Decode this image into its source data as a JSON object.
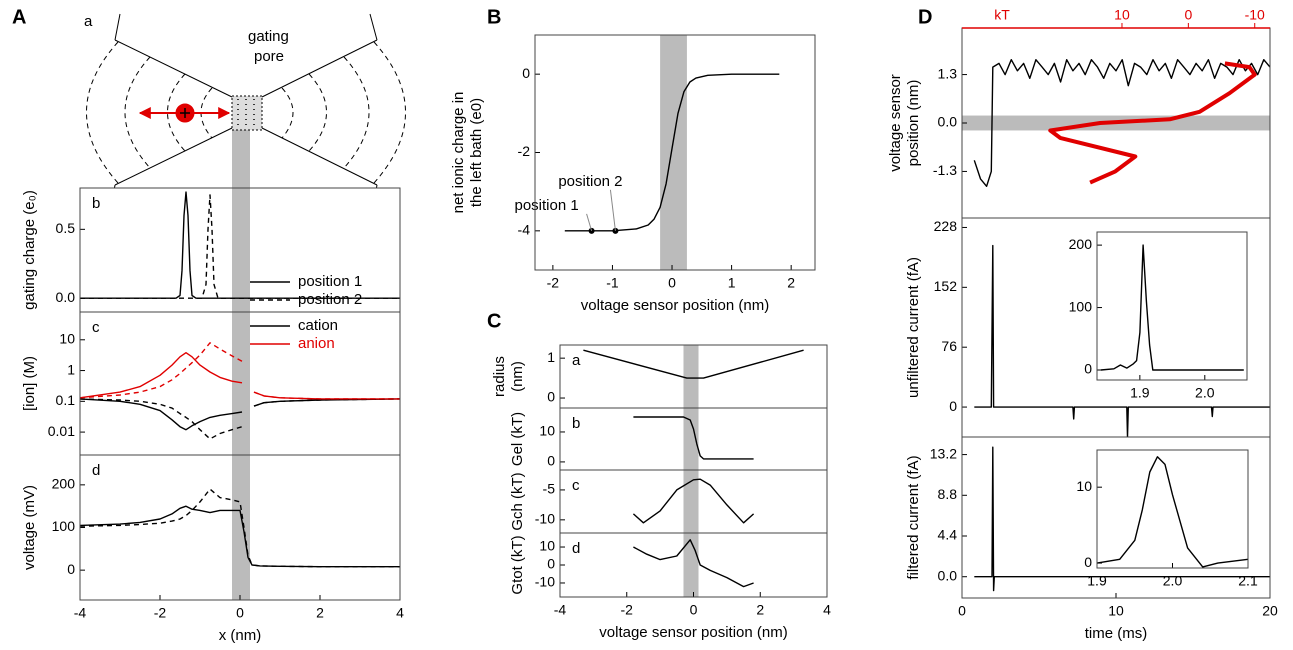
{
  "panels": [
    "A",
    "B",
    "C",
    "D"
  ],
  "schematic": {
    "label": "a",
    "text": [
      "gating",
      "pore"
    ]
  },
  "chart_data": [
    {
      "type": "line",
      "panel_label": "b",
      "ylabel": [
        "gating charge (e₀)"
      ],
      "xlim": [
        -4,
        4
      ],
      "ylim": [
        -0.1,
        0.8
      ],
      "yticks": [
        {
          "value": 0,
          "label": "0.0"
        },
        0.5
      ],
      "band": [
        -0.2,
        0.25
      ],
      "legend": "lower right",
      "x": [
        -4,
        -1.6,
        -1.5,
        -1.45,
        -1.4,
        -1.35,
        -1.3,
        -1.25,
        -1.2,
        -1.1,
        -0.95,
        -0.85,
        -0.8,
        -0.75,
        -0.7,
        -0.65,
        -0.55,
        4
      ],
      "series": [
        {
          "name": "position 1",
          "color": "#000000",
          "values": [
            0,
            0,
            0.02,
            0.2,
            0.6,
            0.77,
            0.6,
            0.2,
            0.02,
            0,
            0,
            0,
            0,
            0,
            0,
            0,
            0,
            0
          ]
        },
        {
          "name": "position 2",
          "color": "#000000",
          "dash": true,
          "values": [
            0,
            0,
            0,
            0,
            0,
            0,
            0,
            0,
            0,
            0,
            0,
            0.1,
            0.5,
            0.75,
            0.5,
            0.1,
            0,
            0
          ]
        }
      ]
    },
    {
      "type": "line",
      "panel_label": "c",
      "ylabel": [
        "[ion] (M)"
      ],
      "xlim": [
        -4,
        4
      ],
      "ylim": [
        0.0018,
        80
      ],
      "log_y": true,
      "yticks": [
        0.01,
        0.1,
        1,
        10
      ],
      "band": [
        -0.2,
        0.25
      ],
      "legend": "upper right",
      "x": [
        -4,
        -3,
        -2.5,
        -2,
        -1.7,
        -1.5,
        -1.35,
        -1.2,
        -1,
        -0.75,
        -0.5,
        -0.2,
        0.05,
        0.2,
        0.35,
        0.6,
        1,
        2,
        4
      ],
      "series": [
        {
          "name": "cation",
          "color": "#000000",
          "values": [
            0.12,
            0.1,
            0.08,
            0.05,
            0.025,
            0.015,
            0.012,
            0.016,
            0.022,
            0.03,
            0.035,
            0.04,
            0.045,
            null,
            0.07,
            0.09,
            0.1,
            0.11,
            0.12
          ]
        },
        {
          "name": "anion",
          "color": "#e00000",
          "values": [
            0.13,
            0.2,
            0.3,
            0.7,
            1.5,
            2.8,
            3.8,
            2.8,
            1.5,
            0.9,
            0.6,
            0.45,
            0.4,
            null,
            0.2,
            0.15,
            0.13,
            0.12,
            0.12
          ]
        },
        {
          "color": "#000000",
          "dash": true,
          "values": [
            0.12,
            0.11,
            0.1,
            0.08,
            0.06,
            0.04,
            0.03,
            0.022,
            0.012,
            0.006,
            0.009,
            0.012,
            0.015,
            null,
            0.07,
            0.09,
            0.1,
            0.11,
            0.12
          ]
        },
        {
          "color": "#e00000",
          "dash": true,
          "values": [
            0.13,
            0.16,
            0.2,
            0.3,
            0.5,
            0.8,
            1.2,
            1.8,
            3.2,
            8,
            5,
            3,
            2,
            null,
            0.2,
            0.15,
            0.13,
            0.12,
            0.12
          ]
        }
      ]
    },
    {
      "type": "line",
      "panel_label": "d",
      "ylabel": [
        "voltage (mV)"
      ],
      "xlabel": "x (nm)",
      "xlim": [
        -4,
        4
      ],
      "ylim": [
        -70,
        270
      ],
      "xticks": [
        -4,
        -2,
        0,
        2,
        4
      ],
      "yticks": [
        0,
        100,
        200
      ],
      "band": [
        -0.2,
        0.25
      ],
      "x": [
        -4,
        -3,
        -2.5,
        -2,
        -1.7,
        -1.5,
        -1.35,
        -1.2,
        -1,
        -0.75,
        -0.5,
        -0.2,
        0,
        0.1,
        0.2,
        0.3,
        0.5,
        1,
        2,
        4
      ],
      "series": [
        {
          "color": "#000000",
          "values": [
            105,
            108,
            112,
            120,
            132,
            145,
            150,
            143,
            140,
            135,
            140,
            140,
            140,
            90,
            30,
            12,
            10,
            9,
            8,
            8
          ]
        },
        {
          "color": "#000000",
          "dash": true,
          "values": [
            103,
            105,
            107,
            110,
            115,
            120,
            128,
            140,
            160,
            190,
            170,
            165,
            160,
            100,
            35,
            12,
            10,
            9,
            8,
            8
          ]
        }
      ]
    },
    {
      "type": "line",
      "ylabel": [
        "net ionic charge in",
        "the left bath (e0)"
      ],
      "xlabel": "voltage sensor position (nm)",
      "xlim": [
        -2.3,
        2.4
      ],
      "ylim": [
        -5,
        1
      ],
      "xticks": [
        -2,
        -1,
        0,
        1,
        2
      ],
      "yticks": [
        -4,
        -2,
        0
      ],
      "band": [
        -0.2,
        0.25
      ],
      "x": [
        -1.8,
        -1,
        -0.6,
        -0.4,
        -0.3,
        -0.2,
        -0.1,
        0,
        0.1,
        0.2,
        0.3,
        0.4,
        0.6,
        1,
        1.8
      ],
      "series": [
        {
          "color": "#000000",
          "values": [
            -4,
            -4,
            -3.95,
            -3.85,
            -3.7,
            -3.4,
            -2.8,
            -1.9,
            -1,
            -0.45,
            -0.2,
            -0.1,
            -0.03,
            0,
            0
          ]
        }
      ],
      "points": [
        {
          "x": -1.35,
          "y": -4,
          "label": "position 1"
        },
        {
          "x": -0.95,
          "y": -4,
          "label": "position 2"
        }
      ]
    },
    {
      "type": "line",
      "panel_label": "a",
      "ylabel": [
        "radius",
        "(nm)"
      ],
      "xlim": [
        -4,
        4
      ],
      "ylim": [
        -0.25,
        1.33
      ],
      "yticks": [
        0,
        1
      ],
      "band": [
        -0.3,
        0.15
      ],
      "x": [
        -3.3,
        -0.2,
        0.3,
        3.3
      ],
      "series": [
        {
          "color": "#000000",
          "values": [
            1.2,
            0.5,
            0.5,
            1.2
          ]
        }
      ]
    },
    {
      "type": "line",
      "panel_label": "b",
      "ylabel": [
        "Gel (kT)"
      ],
      "xlim": [
        -4,
        4
      ],
      "ylim": [
        -2.7,
        18
      ],
      "yticks": [
        0,
        10
      ],
      "band": [
        -0.3,
        0.15
      ],
      "x": [
        -1.8,
        -0.3,
        -0.1,
        0,
        0.1,
        0.2,
        0.3,
        0.5,
        1,
        1.8
      ],
      "series": [
        {
          "color": "#000000",
          "values": [
            15,
            15,
            14,
            11,
            6,
            2,
            1,
            1,
            1,
            1
          ]
        }
      ]
    },
    {
      "type": "line",
      "panel_label": "c",
      "ylabel": [
        "Gch (kT)"
      ],
      "xlim": [
        -4,
        4
      ],
      "ylim": [
        -12.2,
        -1.67
      ],
      "yticks": [
        -10,
        -5
      ],
      "band": [
        -0.3,
        0.15
      ],
      "x": [
        -1.8,
        -1.5,
        -1,
        -0.5,
        0,
        0.2,
        0.5,
        1,
        1.5,
        1.8
      ],
      "series": [
        {
          "color": "#000000",
          "values": [
            -9,
            -10.5,
            -8.5,
            -5,
            -3.3,
            -3.2,
            -4.2,
            -7.5,
            -10.5,
            -9
          ]
        }
      ]
    },
    {
      "type": "line",
      "panel_label": "d",
      "ylabel": [
        "Gtot (kT)"
      ],
      "xlabel": "voltage sensor position (nm)",
      "xlim": [
        -4,
        4
      ],
      "ylim": [
        -17.8,
        17.8
      ],
      "xticks": [
        -4,
        -2,
        0,
        2,
        4
      ],
      "yticks": [
        -10,
        0,
        10
      ],
      "band": [
        -0.3,
        0.15
      ],
      "x": [
        -1.8,
        -1.4,
        -1,
        -0.5,
        -0.1,
        0.05,
        0.2,
        0.5,
        1,
        1.5,
        1.8
      ],
      "series": [
        {
          "color": "#000000",
          "values": [
            10,
            6,
            3,
            5,
            14,
            8,
            0,
            -3,
            -7,
            -12,
            -10
          ]
        }
      ]
    },
    {
      "type": "line",
      "ylabel": [
        "voltage sensor",
        "position (nm)"
      ],
      "xlim": [
        0,
        20
      ],
      "ylim": [
        -2.55,
        2.55
      ],
      "yticks": [
        -1.3,
        {
          "value": 0,
          "label": "0.0"
        },
        1.3
      ],
      "band_y": [
        -0.2,
        0.2
      ],
      "x2lim": [
        34.1,
        -12.3
      ],
      "x2ticks": [
        10,
        0,
        -10
      ],
      "x2label": "kT",
      "x2color": "#e00000",
      "x": [
        0.8,
        1.2,
        1.6,
        1.9,
        2.0,
        2.4,
        2.8,
        3.2,
        3.6,
        4,
        4.4,
        4.8,
        5.2,
        5.6,
        6,
        6.4,
        6.8,
        7.2,
        7.6,
        8,
        8.4,
        8.8,
        9.2,
        9.6,
        10,
        10.4,
        10.8,
        11.2,
        11.6,
        12,
        12.4,
        12.8,
        13.2,
        13.6,
        14,
        14.4,
        14.8,
        15.2,
        15.6,
        16,
        16.4,
        16.8,
        17.2,
        17.6,
        18,
        18.4,
        18.8,
        19.2,
        19.6,
        20
      ],
      "series": [
        {
          "color": "#000000",
          "values": [
            -1.0,
            -1.5,
            -1.7,
            -1.3,
            1.5,
            1.6,
            1.3,
            1.7,
            1.4,
            1.6,
            1.2,
            1.7,
            1.5,
            1.3,
            1.6,
            1.1,
            1.7,
            1.4,
            1.6,
            1.3,
            1.7,
            1.5,
            1.2,
            1.6,
            1.4,
            1.7,
            1.0,
            1.6,
            1.5,
            1.3,
            1.7,
            1.4,
            1.6,
            1.2,
            1.7,
            1.5,
            1.3,
            1.6,
            1.4,
            1.7,
            1.2,
            1.6,
            1.5,
            1.3,
            1.7,
            1.4,
            1.6,
            1.3,
            1.7,
            1.5
          ]
        },
        {
          "color": "#e00000",
          "axis": "x2",
          "x": [
            14.8,
            11,
            8,
            19.3,
            20.8,
            13.3,
            2.8,
            -1.7,
            -6.2,
            -10,
            -9.2,
            -5.5
          ],
          "values": [
            -1.6,
            -1.3,
            -0.9,
            -0.4,
            -0.2,
            0,
            0.1,
            0.3,
            0.8,
            1.3,
            1.5,
            1.6
          ]
        }
      ]
    },
    {
      "type": "line",
      "ylabel": [
        "unfiltered current (fA)"
      ],
      "xlim": [
        0,
        20
      ],
      "ylim": [
        -38,
        240
      ],
      "yticks": [
        0,
        76,
        152,
        228
      ],
      "x": [
        0.8,
        1.9,
        2.0,
        2.05,
        2.1,
        7.2,
        7.25,
        7.3,
        10.7,
        10.75,
        10.8,
        16.2,
        16.25,
        16.3,
        20
      ],
      "series": [
        {
          "color": "#000000",
          "values": [
            0,
            0,
            205,
            0,
            0,
            0,
            -15,
            0,
            0,
            -38,
            0,
            0,
            -12,
            0,
            0
          ]
        }
      ]
    },
    {
      "type": "line",
      "xlim": [
        1.834,
        2.065
      ],
      "ylim": [
        -16,
        221
      ],
      "xticks": [
        1.9,
        {
          "value": 2,
          "label": "2.0"
        }
      ],
      "yticks": [
        0,
        100,
        200
      ],
      "x": [
        1.84,
        1.86,
        1.87,
        1.88,
        1.89,
        1.895,
        1.9,
        1.905,
        1.91,
        1.915,
        1.92,
        2.06
      ],
      "series": [
        {
          "color": "#000000",
          "values": [
            0,
            2,
            8,
            3,
            10,
            15,
            60,
            200,
            110,
            40,
            0,
            0
          ]
        }
      ]
    },
    {
      "type": "line",
      "ylabel": [
        "filtered current (fA)"
      ],
      "xlabel": "time (ms)",
      "xlim": [
        0,
        20
      ],
      "ylim": [
        -2.3,
        15.1
      ],
      "xticks": [
        0,
        10,
        20
      ],
      "yticks": [
        {
          "value": 0,
          "label": "0.0"
        },
        4.4,
        8.8,
        13.2
      ],
      "x": [
        0.8,
        1.95,
        2.0,
        2.05,
        2.1,
        20
      ],
      "series": [
        {
          "color": "#000000",
          "values": [
            0,
            0,
            14,
            -1.5,
            0,
            0
          ]
        }
      ]
    },
    {
      "type": "line",
      "xlim": [
        1.9,
        2.1
      ],
      "ylim": [
        -0.65,
        14.9
      ],
      "xticks": [
        1.9,
        {
          "value": 2,
          "label": "2.0"
        },
        2.1
      ],
      "yticks": [
        0,
        10
      ],
      "x": [
        1.9,
        1.93,
        1.95,
        1.96,
        1.97,
        1.98,
        1.99,
        2.0,
        2.02,
        2.04,
        2.06,
        2.1
      ],
      "series": [
        {
          "color": "#000000",
          "values": [
            0,
            0.5,
            3,
            7,
            12,
            14,
            13,
            9,
            2,
            -0.5,
            0,
            0.5
          ]
        }
      ]
    }
  ]
}
